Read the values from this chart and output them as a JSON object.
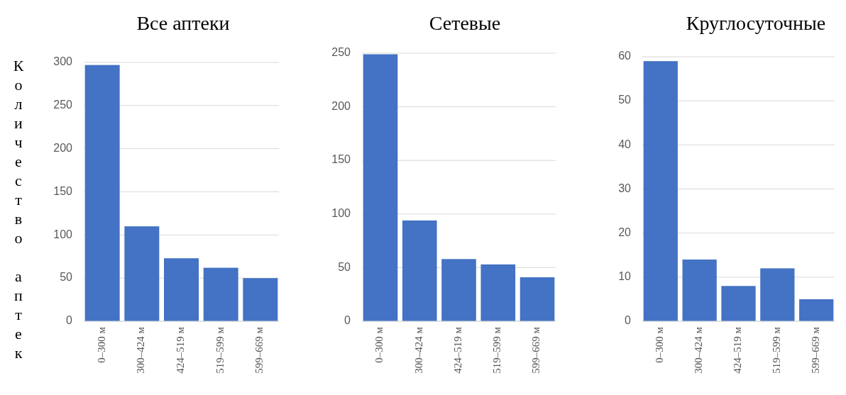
{
  "chart_data": [
    {
      "type": "bar",
      "title": "Все аптеки",
      "ylabel": "Количество аптек",
      "categories": [
        "0–300 м",
        "300–424 м",
        "424–519 м",
        "519–599 м",
        "599–669 м"
      ],
      "values": [
        297,
        110,
        73,
        62,
        50
      ],
      "color": "#4472c4",
      "ylim": [
        0,
        300
      ],
      "yticks": [
        0,
        50,
        100,
        150,
        200,
        250,
        300
      ],
      "grid": "y"
    },
    {
      "type": "bar",
      "title": "Сетевые",
      "categories": [
        "0–300 м",
        "300–424 м",
        "424–519 м",
        "519–599 м",
        "599–669 м"
      ],
      "values": [
        249,
        94,
        58,
        53,
        41
      ],
      "color": "#4472c4",
      "ylim": [
        0,
        250
      ],
      "yticks": [
        0,
        50,
        100,
        150,
        200,
        250
      ],
      "grid": "y"
    },
    {
      "type": "bar",
      "title": "Круглосуточные",
      "categories": [
        "0–300 м",
        "300–424 м",
        "424–519 м",
        "519–599 м",
        "599–669 м"
      ],
      "values": [
        59,
        14,
        8,
        12,
        5
      ],
      "color": "#4472c4",
      "ylim": [
        0,
        60
      ],
      "yticks": [
        0,
        10,
        20,
        30,
        40,
        50,
        60
      ],
      "grid": "y"
    }
  ]
}
